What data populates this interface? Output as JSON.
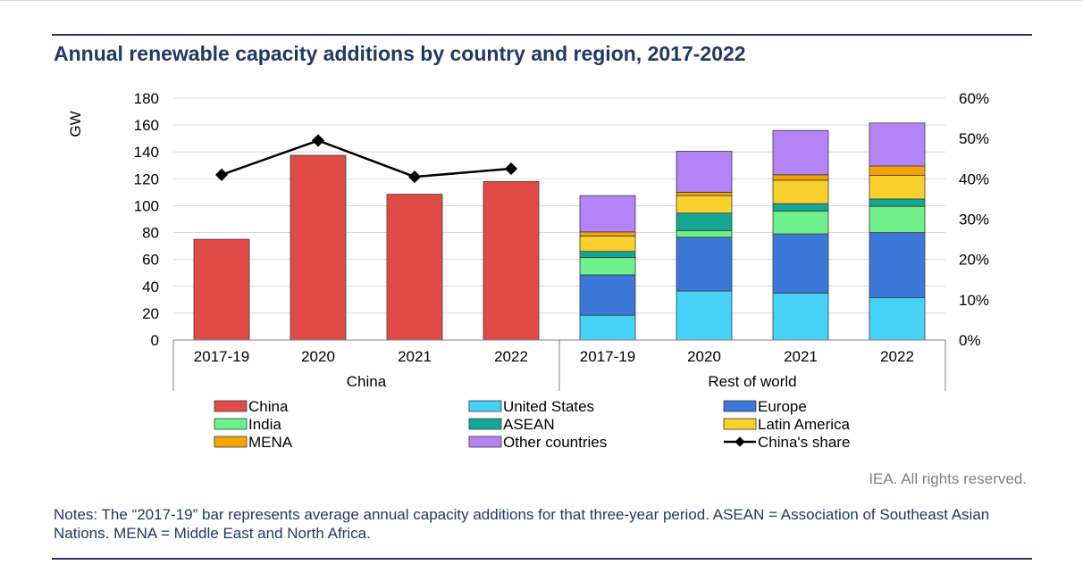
{
  "title": "Annual renewable capacity additions by country and region, 2017-2022",
  "copyright": "IEA. All rights reserved.",
  "notes": "Notes: The “2017-19” bar represents average annual capacity additions for that three-year period. ASEAN = Association of Southeast Asian Nations. MENA = Middle East and North Africa.",
  "chart_data": {
    "type": "bar",
    "stacked": true,
    "ylabel": "GW",
    "ylim": [
      0,
      180
    ],
    "y_ticks": [
      0,
      20,
      40,
      60,
      80,
      100,
      120,
      140,
      160,
      180
    ],
    "y2lim": [
      0,
      0.6
    ],
    "y2_ticks": [
      "0%",
      "10%",
      "20%",
      "30%",
      "40%",
      "50%",
      "60%"
    ],
    "grid": true,
    "legend_position": "bottom",
    "groups": [
      {
        "label": "China",
        "categories": [
          "2017-19",
          "2020",
          "2021",
          "2022"
        ]
      },
      {
        "label": "Rest of world",
        "categories": [
          "2017-19",
          "2020",
          "2021",
          "2022"
        ]
      }
    ],
    "series": [
      {
        "name": "China",
        "color": "#e04a47",
        "group": "China",
        "values": [
          75,
          137.5,
          108.5,
          118
        ]
      },
      {
        "name": "United States",
        "color": "#46d2f7",
        "group": "Rest of world",
        "values": [
          18.5,
          36.5,
          35,
          31.5
        ]
      },
      {
        "name": "Europe",
        "color": "#3c78d8",
        "group": "Rest of world",
        "values": [
          30,
          40,
          44,
          48.5
        ]
      },
      {
        "name": "India",
        "color": "#6ef08c",
        "group": "Rest of world",
        "values": [
          13,
          5,
          17,
          19.5
        ]
      },
      {
        "name": "ASEAN",
        "color": "#13a894",
        "group": "Rest of world",
        "values": [
          4.5,
          13,
          5.5,
          5.5
        ]
      },
      {
        "name": "Latin America",
        "color": "#fad02c",
        "group": "Rest of world",
        "values": [
          11.5,
          13,
          17.5,
          17.5
        ]
      },
      {
        "name": "MENA",
        "color": "#f5a400",
        "group": "Rest of world",
        "values": [
          3,
          2.5,
          4,
          7
        ]
      },
      {
        "name": "Other countries",
        "color": "#b483f5",
        "group": "Rest of world",
        "values": [
          27,
          30.5,
          33,
          32
        ]
      }
    ],
    "line_series": {
      "name": "China's share",
      "color": "#000000",
      "axis": "right",
      "values": [
        0.41,
        0.495,
        0.405,
        0.425
      ]
    },
    "legend": [
      [
        "China",
        "United States",
        "Europe"
      ],
      [
        "India",
        "ASEAN",
        "Latin America"
      ],
      [
        "MENA",
        "Other countries",
        "China's share"
      ]
    ]
  }
}
